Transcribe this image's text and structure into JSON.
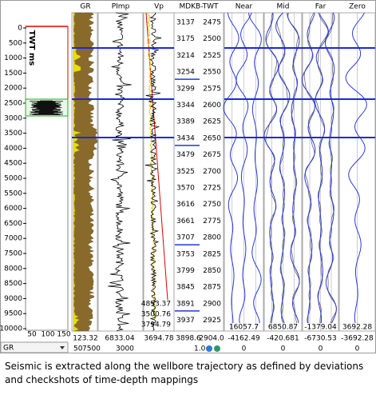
{
  "depth_track": {
    "axis_label": "TWT ms",
    "ticks": [
      "0",
      "500",
      "1000",
      "1500",
      "2000",
      "2500",
      "3000",
      "3500",
      "4000",
      "4500",
      "5000",
      "5500",
      "6000",
      "6500",
      "7000",
      "7500",
      "8000",
      "8500",
      "9000",
      "9500",
      "10000"
    ],
    "scale_labels": [
      "50",
      "100",
      "150"
    ],
    "selector": "GR"
  },
  "log_tracks": [
    {
      "header": "GR",
      "readout": "123.32",
      "scale_min": "50"
    },
    {
      "header": "PImp",
      "readout": "6833.04",
      "scale_min": "7500"
    },
    {
      "header": "Vp",
      "readout": "3694.78",
      "scale_min": "3000",
      "markers": [
        "4853.37",
        "3500.76",
        "3794.79"
      ]
    }
  ],
  "mdkb": {
    "header": "MDKB-TWT",
    "rows": [
      [
        "3137",
        "2475"
      ],
      [
        "3175",
        "2500"
      ],
      [
        "3214",
        "2525"
      ],
      [
        "3254",
        "2550"
      ],
      [
        "3299",
        "2575"
      ],
      [
        "3344",
        "2600"
      ],
      [
        "3389",
        "2625"
      ],
      [
        "3434",
        "2650"
      ],
      [
        "3479",
        "2675"
      ],
      [
        "3525",
        "2700"
      ],
      [
        "3570",
        "2725"
      ],
      [
        "3616",
        "2750"
      ],
      [
        "3661",
        "2775"
      ],
      [
        "3707",
        "2800"
      ],
      [
        "3753",
        "2825"
      ],
      [
        "3799",
        "2850"
      ],
      [
        "3845",
        "2875"
      ],
      [
        "3891",
        "2900"
      ],
      [
        "3937",
        "2925"
      ]
    ],
    "footer": [
      "3898.6",
      "2904.0"
    ],
    "scale": "1.0"
  },
  "seismic_tracks": [
    {
      "header": "Near",
      "max": "16057.7",
      "min": "-4162.49",
      "zero": "0"
    },
    {
      "header": "Mid",
      "max": "6850.87",
      "min": "-420.681",
      "zero": "0"
    },
    {
      "header": "Far",
      "max": "-1379.04",
      "min": "-6730.53",
      "zero": "0"
    },
    {
      "header": "Zero",
      "max": "3692.28",
      "min": "-3692.28",
      "zero": "0"
    }
  ],
  "caption": [
    "Seismic is extracted along the wellbore trajectory as defined by deviations",
    "and checkshots of time-depth mappings"
  ]
}
